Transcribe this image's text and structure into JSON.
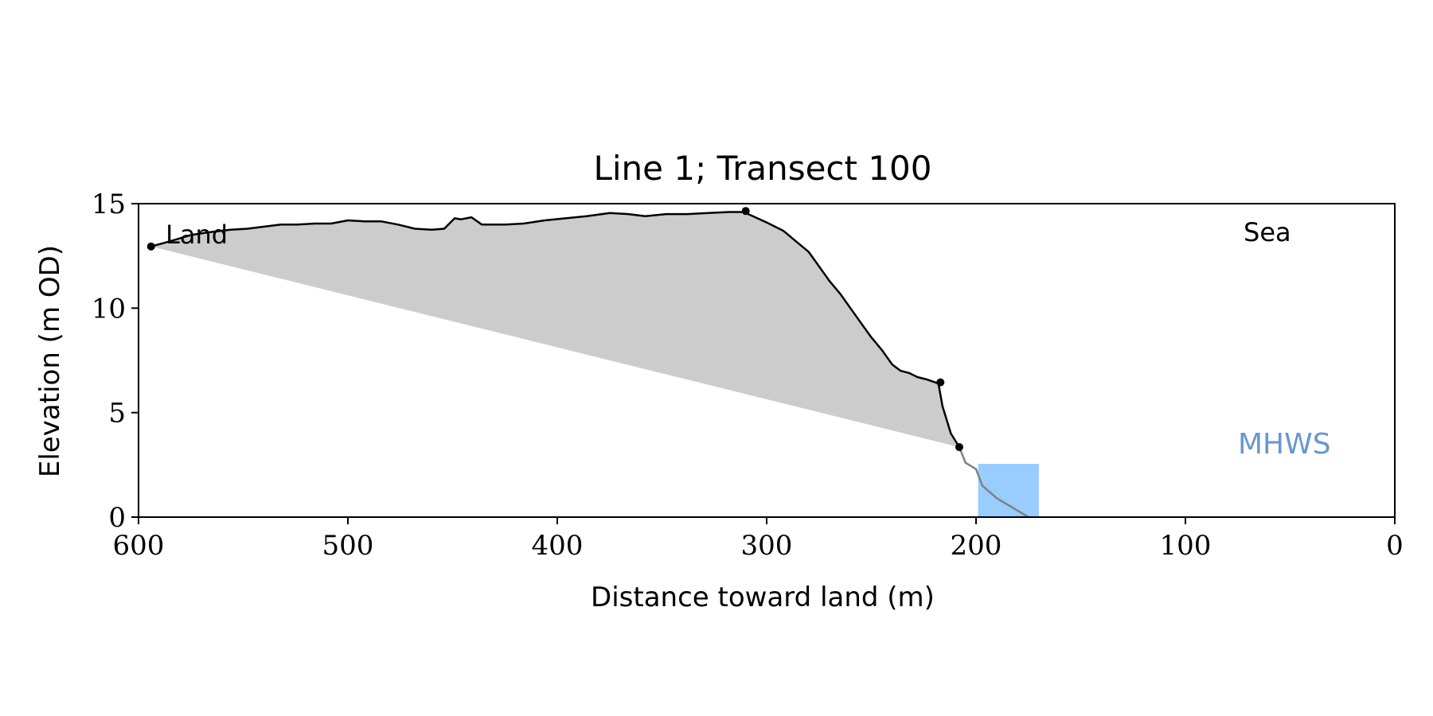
{
  "chart_data": {
    "type": "area",
    "title": "Line 1; Transect 100",
    "xlabel": "Distance toward land (m)",
    "ylabel": "Elevation (m OD)",
    "xlim": [
      600,
      0
    ],
    "ylim": [
      0,
      15
    ],
    "x_ticks": [
      600,
      500,
      400,
      300,
      200,
      100,
      0
    ],
    "y_ticks": [
      0,
      5,
      10,
      15
    ],
    "grid": false,
    "annotations": {
      "land_label": "Land",
      "sea_label": "Sea",
      "mhws_label": "MHWS"
    },
    "colors": {
      "profile": "#000000",
      "fill": "#cccccc",
      "lower_profile": "#808080",
      "water": "#99ccff",
      "mhws_text": "#6699cc"
    },
    "profile": {
      "x": [
        594,
        585,
        575,
        565,
        556,
        548,
        540,
        532,
        524,
        516,
        508,
        500,
        492,
        484,
        476,
        468,
        460,
        454,
        449,
        446,
        441,
        436,
        431,
        425,
        416,
        406,
        396,
        386,
        375,
        366,
        358,
        348,
        338,
        328,
        318,
        311,
        300,
        292,
        286,
        280,
        275,
        270,
        265,
        260,
        255,
        250,
        245,
        240,
        236,
        232,
        228,
        224,
        218,
        216,
        212,
        208
      ],
      "y": [
        12.95,
        13.2,
        13.5,
        13.65,
        13.75,
        13.8,
        13.9,
        14.0,
        14.0,
        14.05,
        14.05,
        14.2,
        14.15,
        14.15,
        14.0,
        13.8,
        13.75,
        13.8,
        14.3,
        14.25,
        14.35,
        14.0,
        14.0,
        14.0,
        14.05,
        14.2,
        14.3,
        14.4,
        14.55,
        14.5,
        14.4,
        14.5,
        14.5,
        14.55,
        14.6,
        14.6,
        14.1,
        13.7,
        13.2,
        12.7,
        12.0,
        11.3,
        10.7,
        10.0,
        9.3,
        8.6,
        8.0,
        7.3,
        7.0,
        6.9,
        6.7,
        6.6,
        6.4,
        5.3,
        4.0,
        3.35
      ]
    },
    "lower_profile": {
      "x": [
        208,
        205,
        200,
        197,
        190,
        180,
        175
      ],
      "y": [
        3.35,
        2.6,
        2.3,
        1.5,
        0.9,
        0.3,
        0.0
      ]
    },
    "baseline": {
      "x": [
        594,
        208
      ],
      "y": [
        12.95,
        3.35
      ]
    },
    "key_points": [
      {
        "x": 594,
        "y": 12.95
      },
      {
        "x": 310,
        "y": 14.65
      },
      {
        "x": 217,
        "y": 6.45
      },
      {
        "x": 208,
        "y": 3.35
      }
    ],
    "water": {
      "x_from": 199,
      "x_to": 170,
      "level": 2.55
    }
  }
}
